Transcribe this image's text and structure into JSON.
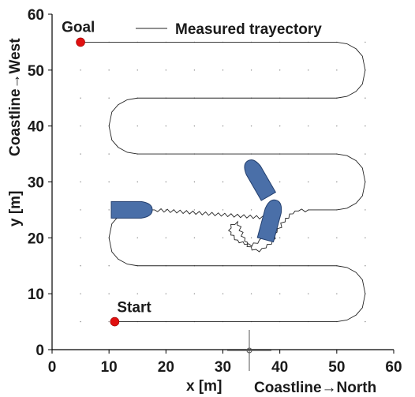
{
  "chart_data": {
    "type": "line",
    "xlabel": "x [m]",
    "ylabel": "y [m]",
    "x_direction_label": "Coastline→North",
    "y_direction_label": "Coastline→West",
    "xlim": [
      0,
      60
    ],
    "ylim": [
      0,
      60
    ],
    "xticks": [
      0,
      10,
      20,
      30,
      40,
      50,
      60
    ],
    "yticks": [
      0,
      10,
      20,
      30,
      40,
      50,
      60
    ],
    "grid": "dotted",
    "legend": {
      "position": "top-right",
      "entries": [
        "Measured trayectory"
      ]
    },
    "series": [
      {
        "name": "Measured trayectory",
        "x": [
          11,
          50,
          51.8,
          53.4,
          54.5,
          55,
          54.5,
          53.4,
          51.8,
          50,
          15,
          13.2,
          11.6,
          10.5,
          10,
          10.5,
          11.6,
          13.2,
          15,
          38.7,
          37.6,
          36.4,
          35.1,
          33.8,
          32.6,
          31.4,
          31,
          31.4,
          32.6,
          33.8,
          35.1,
          36.4,
          37.6,
          38.7,
          39.5,
          41,
          42.3,
          43.3,
          45,
          50,
          51.8,
          53.4,
          54.5,
          55,
          54.5,
          53.4,
          51.8,
          50,
          15,
          13.2,
          11.6,
          10.5,
          10,
          10.5,
          11.6,
          13.2,
          15,
          50,
          51.8,
          53.4,
          54.5,
          55,
          54.5,
          53.4,
          51.8,
          50,
          5
        ],
        "y": [
          5,
          5,
          5.3,
          6.2,
          7.5,
          10,
          12.5,
          13.8,
          14.7,
          15,
          15,
          15.3,
          16.2,
          17.5,
          20,
          22.5,
          23.8,
          24.7,
          25,
          23.5,
          22.4,
          19.6,
          18.5,
          18.8,
          19.6,
          20.5,
          21.3,
          22.4,
          22.9,
          19.4,
          17.8,
          17.5,
          18.2,
          19.5,
          21,
          23.5,
          24.3,
          24.8,
          25,
          25,
          25.3,
          26.2,
          27.5,
          30,
          32.5,
          33.8,
          34.7,
          35,
          35,
          35.3,
          36.2,
          37.5,
          40,
          42.5,
          43.8,
          44.7,
          45,
          45,
          45.3,
          46.2,
          47.5,
          50,
          52.5,
          53.8,
          54.7,
          55,
          55
        ]
      }
    ],
    "annotations": [
      {
        "text": "Start",
        "x": 11,
        "y": 5
      },
      {
        "text": "Goal",
        "x": 5,
        "y": 55
      }
    ],
    "vessels": [
      {
        "name": "vessel-1",
        "x": 14,
        "y": 25,
        "heading_deg": 0
      },
      {
        "name": "vessel-2",
        "x": 36.2,
        "y": 30.6,
        "heading_deg": 120
      },
      {
        "name": "vessel-3",
        "x": 38.4,
        "y": 23.2,
        "heading_deg": 75
      }
    ]
  }
}
